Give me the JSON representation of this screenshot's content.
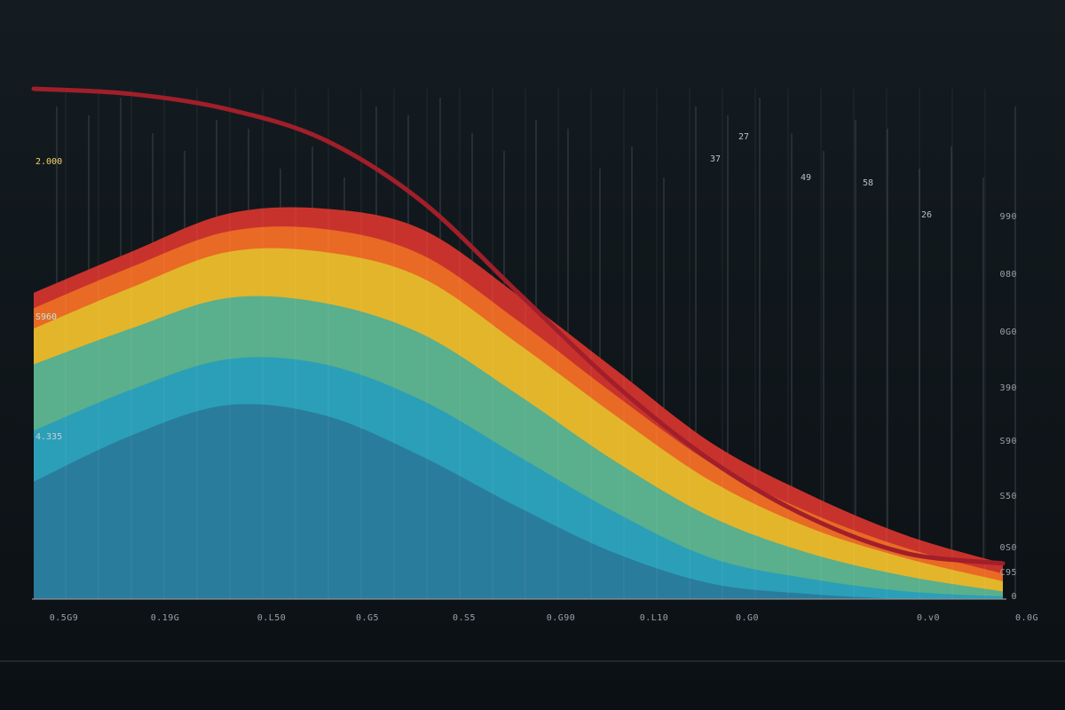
{
  "chart_data": {
    "type": "area",
    "title": "",
    "xlabel": "",
    "ylabel": "",
    "background": "#0f1519",
    "x_tick_labels": [
      "0.5G9",
      "0.19G",
      "0.L50",
      "0.G5",
      "0.S5",
      "0.G90",
      "0.L10",
      "0.G0",
      "0.v0",
      "0.0G"
    ],
    "right_tick_labels": [
      "990",
      "080",
      "0G0",
      "390",
      "S90",
      "S50",
      "0S0",
      "C95",
      "0"
    ],
    "left_labels": [
      "2.000",
      "S960",
      "4.335"
    ],
    "peak_labels": [
      "27",
      "37",
      "49",
      "58",
      "26"
    ],
    "x": [
      0,
      0.1,
      0.2,
      0.3,
      0.4,
      0.5,
      0.6,
      0.7,
      0.8,
      0.9,
      1.0
    ],
    "curve_line": {
      "color": "#a11f2a",
      "values": [
        1.0,
        0.99,
        0.96,
        0.9,
        0.78,
        0.6,
        0.42,
        0.27,
        0.16,
        0.09,
        0.07
      ]
    },
    "series": [
      {
        "color": "#c8322c",
        "values": [
          0.03,
          0.03,
          0.035,
          0.04,
          0.05,
          0.05,
          0.05,
          0.04,
          0.035,
          0.025,
          0.02
        ]
      },
      {
        "color": "#e96a24",
        "values": [
          0.04,
          0.04,
          0.04,
          0.045,
          0.045,
          0.045,
          0.04,
          0.035,
          0.03,
          0.02,
          0.015
        ]
      },
      {
        "color": "#e3b52b",
        "values": [
          0.07,
          0.08,
          0.09,
          0.1,
          0.11,
          0.1,
          0.09,
          0.07,
          0.05,
          0.035,
          0.02
        ]
      },
      {
        "color": "#5aaf8c",
        "values": [
          0.13,
          0.12,
          0.12,
          0.12,
          0.13,
          0.12,
          0.1,
          0.08,
          0.05,
          0.03,
          0.01
        ]
      },
      {
        "color": "#2b9fb8",
        "values": [
          0.1,
          0.09,
          0.09,
          0.1,
          0.11,
          0.1,
          0.08,
          0.05,
          0.03,
          0.015,
          0.005
        ]
      },
      {
        "color": "#2a7c9c",
        "values": [
          0.23,
          0.32,
          0.38,
          0.36,
          0.28,
          0.18,
          0.09,
          0.03,
          0.01,
          0.0,
          0.0
        ]
      }
    ],
    "ylim": [
      0,
      1
    ],
    "grid": true,
    "legend": "none"
  }
}
